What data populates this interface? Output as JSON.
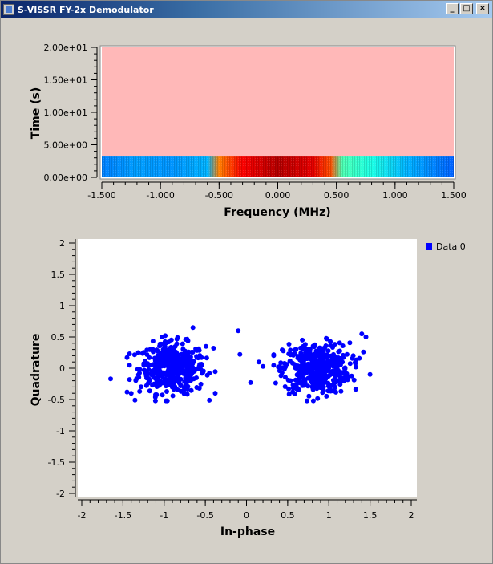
{
  "window": {
    "title": "S-VISSR FY-2x Demodulator",
    "controls": [
      "_",
      "□",
      "×"
    ]
  },
  "chart_data": [
    {
      "type": "heatmap",
      "title": "",
      "xlabel": "Frequency (MHz)",
      "ylabel": "Time (s)",
      "xlim": [
        -1.5,
        1.5
      ],
      "ylim": [
        0,
        20
      ],
      "x_ticks": [
        "-1.500",
        "-1.000",
        "-0.500",
        "0.000",
        "0.500",
        "1.000",
        "1.500"
      ],
      "y_ticks": [
        "0.00e+00",
        "5.00e+00",
        "1.00e+01",
        "1.50e+01",
        "2.00e+01"
      ],
      "filled_time_range": [
        0,
        3.2
      ],
      "empty_color": "#ffb8b8",
      "spectrum_profile": {
        "frequency": [
          -1.5,
          -1.2,
          -0.9,
          -0.6,
          -0.5,
          -0.3,
          0.0,
          0.3,
          0.45,
          0.55,
          0.8,
          1.1,
          1.5
        ],
        "intensity": [
          0.25,
          0.28,
          0.27,
          0.3,
          0.75,
          0.88,
          0.95,
          0.9,
          0.8,
          0.45,
          0.4,
          0.3,
          0.22
        ]
      },
      "grid": false
    },
    {
      "type": "scatter",
      "title": "",
      "xlabel": "In-phase",
      "ylabel": "Quadrature",
      "xlim": [
        -2,
        2
      ],
      "ylim": [
        -2,
        2
      ],
      "x_ticks": [
        "-2",
        "-1.5",
        "-1",
        "-0.5",
        "0",
        "0.5",
        "1",
        "1.5",
        "2"
      ],
      "y_ticks": [
        "-2",
        "-1.5",
        "-1",
        "-0.5",
        "0",
        "0.5",
        "1",
        "1.5",
        "2"
      ],
      "legend": {
        "position": "top-right",
        "entries": [
          "Data 0"
        ]
      },
      "grid": false,
      "series": [
        {
          "name": "Data 0",
          "color": "#0000ff",
          "clusters": [
            {
              "center": [
                -0.9,
                0.0
              ],
              "spread": [
                0.2,
                0.2
              ],
              "count": 450
            },
            {
              "center": [
                0.85,
                0.0
              ],
              "spread": [
                0.2,
                0.2
              ],
              "count": 450
            }
          ],
          "outliers": [
            [
              -1.65,
              -0.17
            ],
            [
              -1.45,
              -0.38
            ],
            [
              -1.4,
              -0.4
            ],
            [
              -1.45,
              0.17
            ],
            [
              -0.65,
              0.65
            ],
            [
              -0.4,
              0.32
            ],
            [
              -0.1,
              0.6
            ],
            [
              -0.08,
              0.22
            ],
            [
              0.05,
              -0.23
            ],
            [
              0.15,
              0.1
            ],
            [
              0.2,
              0.03
            ],
            [
              1.4,
              0.55
            ],
            [
              1.45,
              0.5
            ],
            [
              1.5,
              -0.1
            ],
            [
              1.42,
              0.26
            ]
          ]
        }
      ]
    }
  ]
}
